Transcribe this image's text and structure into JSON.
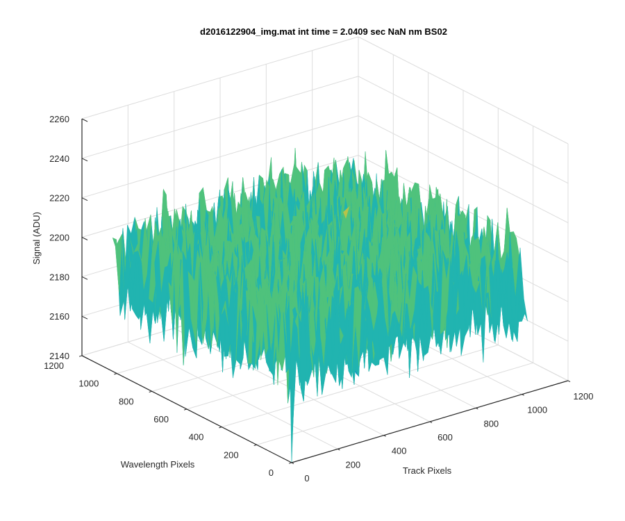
{
  "chart_data": {
    "type": "surface",
    "title": "d2016122904_img.mat int time = 2.0409 sec  NaN nm BS02",
    "xlabel": "Track Pixels",
    "ylabel": "Wavelength Pixels",
    "zlabel": "Signal (ADU)",
    "xlim": [
      0,
      1200
    ],
    "ylim": [
      0,
      1200
    ],
    "zlim": [
      2140,
      2260
    ],
    "xticks": [
      "0",
      "200",
      "400",
      "600",
      "800",
      "1000",
      "1200"
    ],
    "yticks": [
      "0",
      "200",
      "400",
      "600",
      "800",
      "1000",
      "1200"
    ],
    "zticks": [
      "2140",
      "2160",
      "2180",
      "2200",
      "2220",
      "2240",
      "2260"
    ],
    "data_extent": {
      "x": [
        0,
        1024
      ],
      "y": [
        0,
        1024
      ]
    },
    "mean_signal": 2195,
    "noise_range": [
      2150,
      2245
    ],
    "min_signal": 2140,
    "min_location": {
      "x": 0,
      "y": 0
    },
    "grid": true,
    "colormap": [
      "#0a8fc8",
      "#21b4b0",
      "#4fc27c",
      "#b6c34a",
      "#e0c83a"
    ]
  }
}
